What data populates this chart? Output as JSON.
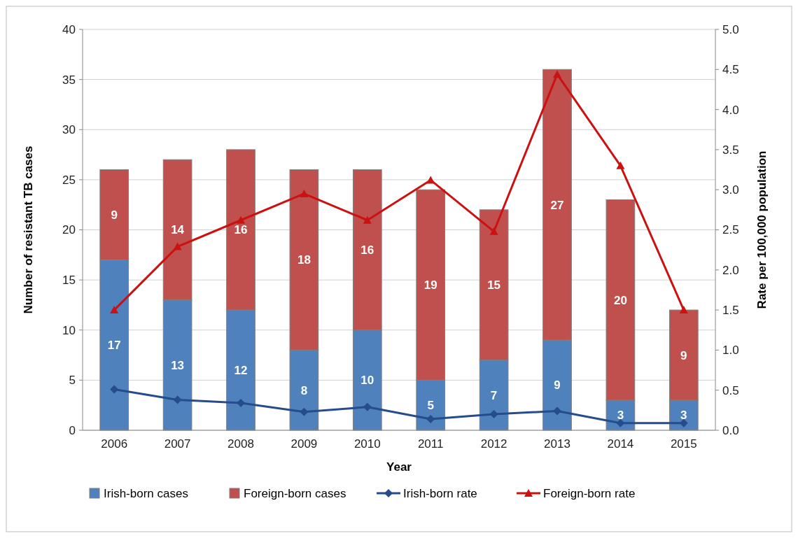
{
  "chart_data": {
    "type": "bar",
    "stacked": true,
    "xlabel": "Year",
    "ylabel": "Number of resistant TB cases",
    "y2label": "Rate per 100,000 population",
    "categories": [
      "2006",
      "2007",
      "2008",
      "2009",
      "2010",
      "2011",
      "2012",
      "2013",
      "2014",
      "2015"
    ],
    "series": [
      {
        "name": "Irish-born cases",
        "color": "#4f81bd",
        "values": [
          17,
          13,
          12,
          8,
          10,
          5,
          7,
          9,
          3,
          3
        ],
        "value_labels": [
          "17",
          "13",
          "12",
          "8",
          "10",
          "5",
          "7",
          "9",
          "3",
          "3"
        ]
      },
      {
        "name": "Foreign-born cases",
        "color": "#c0504d",
        "values": [
          9,
          14,
          16,
          18,
          16,
          19,
          15,
          27,
          20,
          9
        ],
        "value_labels": [
          "9",
          "14",
          "16",
          "18",
          "16",
          "19",
          "15",
          "27",
          "20",
          "9"
        ]
      },
      {
        "name": "Irish-born rate",
        "type": "line",
        "axis": "y2",
        "marker": "diamond",
        "color": "#254c8c",
        "values": [
          0.51,
          0.38,
          0.34,
          0.23,
          0.29,
          0.14,
          0.2,
          0.24,
          0.09,
          0.09
        ]
      },
      {
        "name": "Foreign-born rate",
        "type": "line",
        "axis": "y2",
        "marker": "triangle",
        "color": "#cc1111",
        "values": [
          1.5,
          2.29,
          2.62,
          2.95,
          2.62,
          3.12,
          2.48,
          4.44,
          3.3,
          1.5
        ]
      }
    ],
    "ylim": [
      0,
      40
    ],
    "yticks": [
      0,
      5,
      10,
      15,
      20,
      25,
      30,
      35,
      40
    ],
    "y2lim": [
      0,
      5
    ],
    "y2ticks": [
      {
        "value": 0,
        "label": "0.0"
      },
      {
        "value": 0.5,
        "label": "0.5"
      },
      {
        "value": 1,
        "label": "1.0"
      },
      {
        "value": 1.5,
        "label": "1.5"
      },
      {
        "value": 2,
        "label": "2.0"
      },
      {
        "value": 2.5,
        "label": "2.5"
      },
      {
        "value": 3,
        "label": "3.0"
      },
      {
        "value": 3.5,
        "label": "3.5"
      },
      {
        "value": 4,
        "label": "4.0"
      },
      {
        "value": 4.5,
        "label": "4.5"
      },
      {
        "value": 5,
        "label": "5.0"
      }
    ],
    "grid": "y",
    "legend": "bottom",
    "line_style": "solid"
  }
}
